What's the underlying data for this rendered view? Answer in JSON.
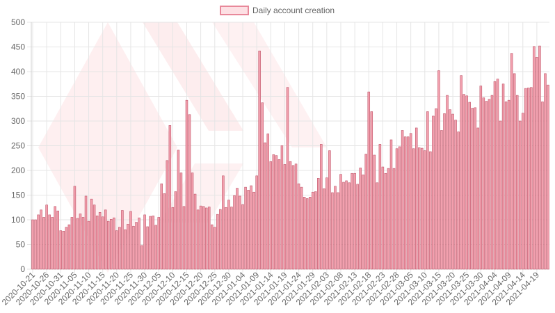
{
  "chart_data": {
    "type": "bar",
    "legend": {
      "label": "Daily account creation",
      "position": "top-center"
    },
    "colors": {
      "bar_fill": "#f2a0ae",
      "bar_stroke": "#c0566a",
      "legend_fill": "#fde0e4",
      "legend_stroke": "#e8889a",
      "grid": "#e5e5e5",
      "watermark": "#fde8ea"
    },
    "ylim": [
      0,
      500
    ],
    "y_ticks": [
      0,
      50,
      100,
      150,
      200,
      250,
      300,
      350,
      400,
      450,
      500
    ],
    "grid": true,
    "start_date": "2020-10-21",
    "x_tick_labels": [
      "2020-10-21",
      "2020-10-26",
      "2020-10-31",
      "2020-11-05",
      "2020-11-10",
      "2020-11-15",
      "2020-11-20",
      "2020-11-25",
      "2020-11-30",
      "2020-12-05",
      "2020-12-10",
      "2020-12-15",
      "2020-12-20",
      "2020-12-25",
      "2020-12-30",
      "2021-01-04",
      "2021-01-09",
      "2021-01-14",
      "2021-01-19",
      "2021-01-24",
      "2021-01-29",
      "2021-02-03",
      "2021-02-08",
      "2021-02-13",
      "2021-02-18",
      "2021-02-23",
      "2021-02-28",
      "2021-03-05",
      "2021-03-10",
      "2021-03-15",
      "2021-03-20",
      "2021-03-25",
      "2021-03-30",
      "2021-04-04",
      "2021-04-09",
      "2021-04-14",
      "2021-04-19"
    ],
    "values": [
      100,
      100,
      110,
      120,
      105,
      130,
      110,
      105,
      127,
      118,
      78,
      77,
      85,
      90,
      105,
      168,
      103,
      112,
      105,
      148,
      97,
      142,
      130,
      108,
      115,
      106,
      120,
      97,
      101,
      104,
      78,
      85,
      119,
      80,
      91,
      117,
      87,
      95,
      104,
      48,
      110,
      86,
      107,
      108,
      89,
      105,
      173,
      153,
      220,
      291,
      125,
      157,
      241,
      195,
      127,
      342,
      313,
      195,
      152,
      120,
      128,
      127,
      124,
      126,
      90,
      85,
      111,
      121,
      189,
      125,
      140,
      126,
      149,
      164,
      148,
      131,
      166,
      160,
      169,
      156,
      189,
      442,
      337,
      256,
      274,
      218,
      232,
      230,
      222,
      250,
      212,
      368,
      218,
      210,
      213,
      173,
      166,
      146,
      143,
      146,
      156,
      157,
      184,
      253,
      163,
      185,
      240,
      155,
      168,
      155,
      192,
      176,
      179,
      175,
      194,
      194,
      172,
      205,
      191,
      233,
      359,
      319,
      231,
      175,
      253,
      207,
      194,
      204,
      262,
      204,
      244,
      248,
      281,
      268,
      268,
      275,
      244,
      286,
      246,
      245,
      240,
      319,
      238,
      310,
      325,
      402,
      281,
      315,
      352,
      323,
      314,
      302,
      278,
      392,
      354,
      351,
      338,
      326,
      327,
      286,
      371,
      347,
      340,
      344,
      352,
      380,
      385,
      300,
      375,
      339,
      342,
      437,
      396,
      352,
      300,
      316,
      366,
      367,
      368,
      451,
      429,
      452,
      339,
      396,
      373
    ]
  }
}
